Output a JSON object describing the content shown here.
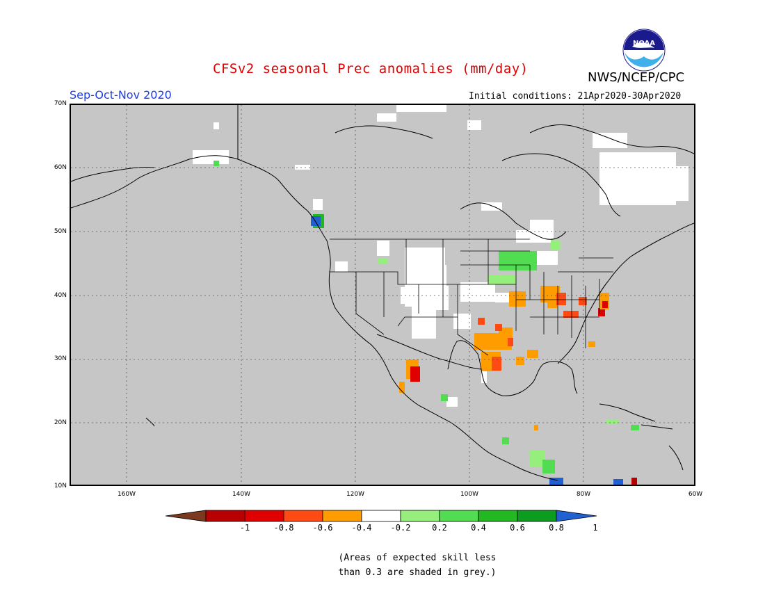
{
  "header": {
    "title": "CFSv2 seasonal Prec anomalies (mm/day)",
    "agency": "NWS/NCEP/CPC",
    "season": "Sep-Oct-Nov 2020",
    "initial_conditions": "Initial conditions: 21Apr2020-30Apr2020",
    "logo_text": "NOAA"
  },
  "map": {
    "lat_labels": [
      "70N",
      "60N",
      "50N",
      "40N",
      "30N",
      "20N",
      "10N"
    ],
    "lon_labels": [
      "160W",
      "140W",
      "120W",
      "100W",
      "80W",
      "60W"
    ],
    "fill_color": "#c6c6c6",
    "grid": "dotted"
  },
  "colorbar": {
    "labels": [
      "-1",
      "-0.8",
      "-0.6",
      "-0.4",
      "-0.2",
      "0.2",
      "0.4",
      "0.6",
      "0.8",
      "1"
    ],
    "colors": [
      "#7b3a20",
      "#b80000",
      "#e00000",
      "#ff4a14",
      "#ff9c00",
      "#ffffff",
      "#96ee7c",
      "#52dc52",
      "#22b822",
      "#0c9c20",
      "#2060d0"
    ]
  },
  "note": {
    "line1": "(Areas of expected skill less",
    "line2": "than 0.3 are shaded in grey.)"
  }
}
